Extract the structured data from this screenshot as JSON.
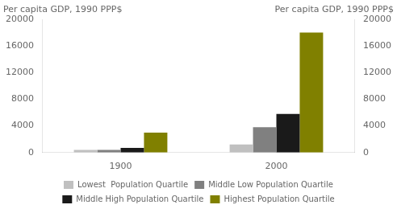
{
  "chart_data": {
    "type": "bar",
    "ylabel": "Per capita GDP, 1990 PPP$",
    "y2label": "Per capita GDP, 1990 PPP$",
    "categories": [
      "1900",
      "2000"
    ],
    "series": [
      {
        "name": "Lowest  Population Quartile",
        "color": "#c0c0c0",
        "values": [
          400,
          1200
        ]
      },
      {
        "name": "Middle Low Population Quartile",
        "color": "#808080",
        "values": [
          400,
          3800
        ]
      },
      {
        "name": "Middle High Population Quartile",
        "color": "#1a1a1a",
        "values": [
          700,
          5800
        ]
      },
      {
        "name": "Highest Population Quartile",
        "color": "#808000",
        "values": [
          3000,
          18000
        ]
      }
    ],
    "ylim": [
      0,
      20000
    ],
    "yticks": [
      0,
      4000,
      8000,
      12000,
      16000,
      20000
    ],
    "y2lim": [
      0,
      20000
    ],
    "y2ticks": [
      0,
      4000,
      8000,
      12000,
      16000,
      20000
    ],
    "grid": false,
    "legend": "bottom"
  }
}
